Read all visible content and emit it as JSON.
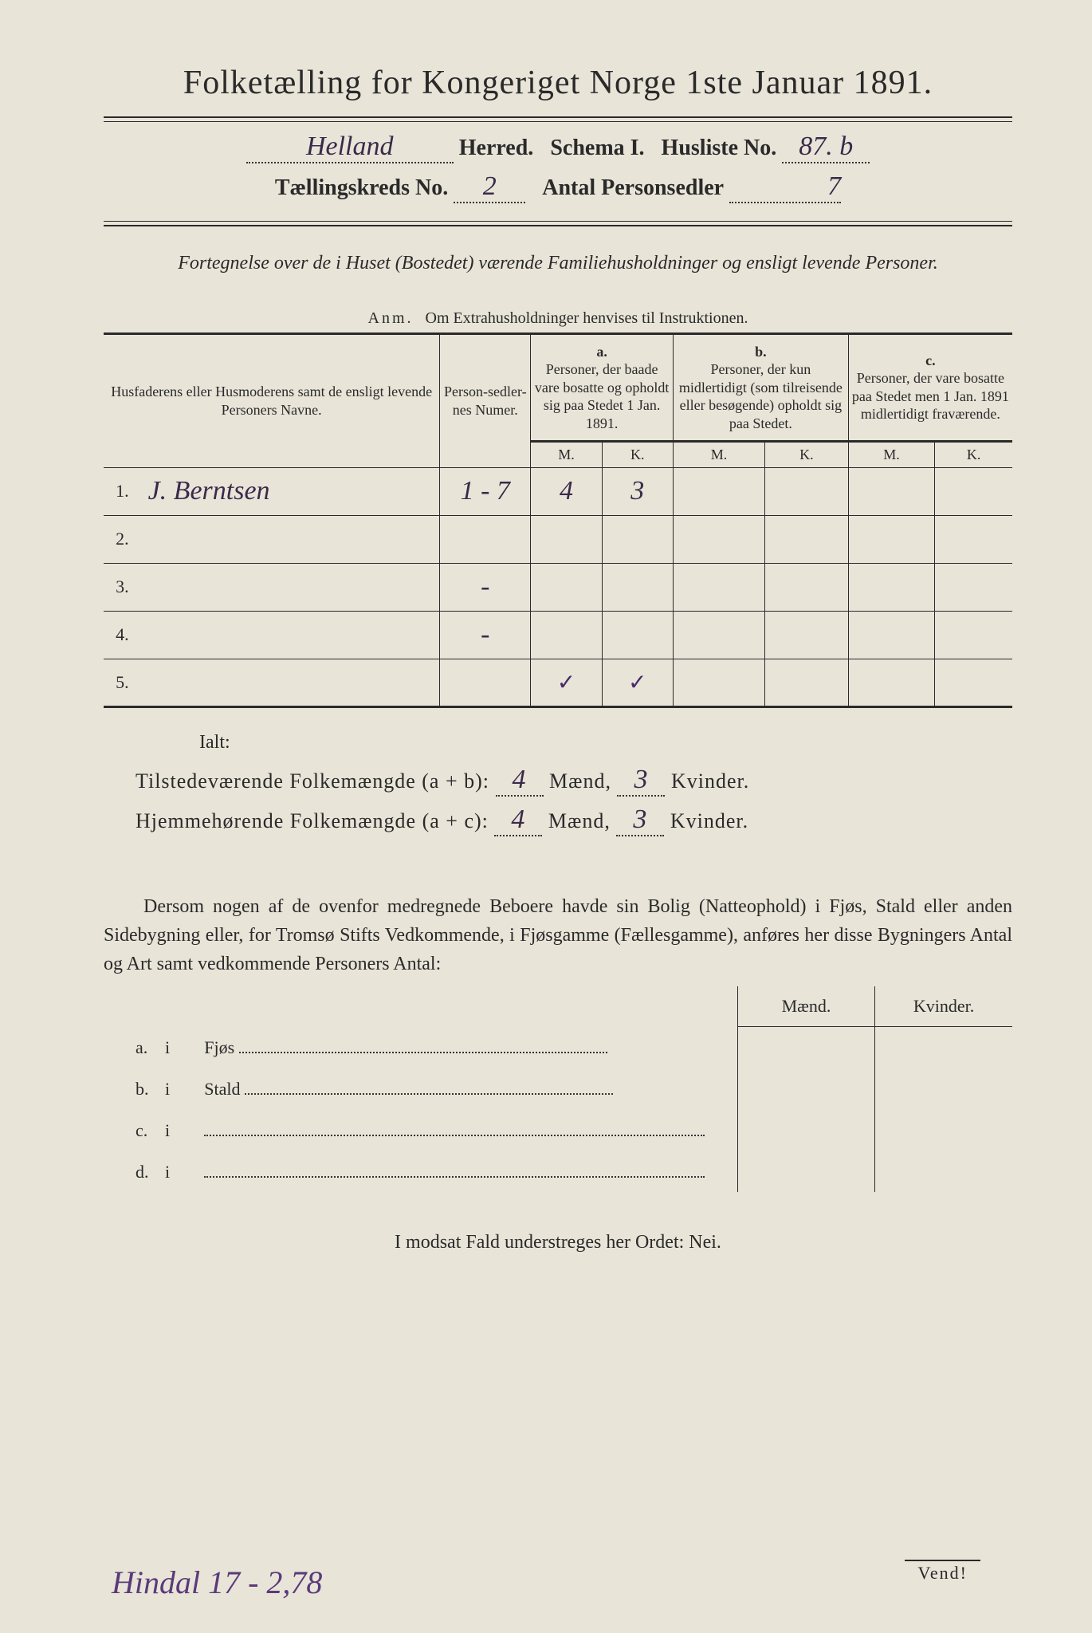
{
  "colors": {
    "paper": "#e8e4d8",
    "ink": "#2a2a2a",
    "handwriting": "#4a2a6a",
    "border": "#2a2a2a"
  },
  "title": "Folketælling for Kongeriget Norge 1ste Januar 1891.",
  "header": {
    "herred_value": "Helland",
    "herred_label": "Herred.",
    "schema_label": "Schema I.",
    "husliste_label": "Husliste No.",
    "husliste_value": "87. b",
    "kreds_label": "Tællingskreds No.",
    "kreds_value": "2",
    "antal_label": "Antal Personsedler",
    "antal_value": "7"
  },
  "subtitle": "Fortegnelse over de i Huset (Bostedet) værende Familiehusholdninger og ensligt levende Personer.",
  "anm_label": "Anm.",
  "anm_text": "Om Extrahusholdninger henvises til Instruktionen.",
  "columns": {
    "names": "Husfaderens eller Husmoderens samt de ensligt levende Personers Navne.",
    "numer": "Person-sedler-nes Numer.",
    "a_label": "a.",
    "a_text": "Personer, der baade vare bosatte og opholdt sig paa Stedet 1 Jan. 1891.",
    "b_label": "b.",
    "b_text": "Personer, der kun midlertidigt (som tilreisende eller besøgende) opholdt sig paa Stedet.",
    "c_label": "c.",
    "c_text": "Personer, der vare bosatte paa Stedet men 1 Jan. 1891 midlertidigt fraværende.",
    "m": "M.",
    "k": "K."
  },
  "rows": [
    {
      "n": "1.",
      "name": "J. Berntsen",
      "num": "1 - 7",
      "a_m": "4",
      "a_k": "3",
      "b_m": "",
      "b_k": "",
      "c_m": "",
      "c_k": ""
    },
    {
      "n": "2.",
      "name": "",
      "num": "",
      "a_m": "",
      "a_k": "",
      "b_m": "",
      "b_k": "",
      "c_m": "",
      "c_k": ""
    },
    {
      "n": "3.",
      "name": "",
      "num": "-",
      "a_m": "",
      "a_k": "",
      "b_m": "",
      "b_k": "",
      "c_m": "",
      "c_k": ""
    },
    {
      "n": "4.",
      "name": "",
      "num": "-",
      "a_m": "",
      "a_k": "",
      "b_m": "",
      "b_k": "",
      "c_m": "",
      "c_k": ""
    },
    {
      "n": "5.",
      "name": "",
      "num": "",
      "a_m": "✓",
      "a_k": "✓",
      "b_m": "",
      "b_k": "",
      "c_m": "",
      "c_k": ""
    }
  ],
  "ialt": "Ialt:",
  "totals": {
    "line1_label": "Tilstedeværende Folkemængde (a + b):",
    "line1_m": "4",
    "line1_k": "3",
    "line2_label": "Hjemmehørende Folkemængde (a + c):",
    "line2_m": "4",
    "line2_k": "3",
    "maend": "Mænd,",
    "kvinder": "Kvinder."
  },
  "body_text": "Dersom nogen af de ovenfor medregnede Beboere havde sin Bolig (Natteophold) i Fjøs, Stald eller anden Sidebygning eller, for Tromsø Stifts Vedkommende, i Fjøsgamme (Fællesgamme), anføres her disse Bygningers Antal og Art samt vedkommende Personers Antal:",
  "side_table": {
    "h_maend": "Mænd.",
    "h_kvinder": "Kvinder.",
    "rows": [
      {
        "l": "a.",
        "i": "i",
        "t": "Fjøs"
      },
      {
        "l": "b.",
        "i": "i",
        "t": "Stald"
      },
      {
        "l": "c.",
        "i": "i",
        "t": ""
      },
      {
        "l": "d.",
        "i": "i",
        "t": ""
      }
    ]
  },
  "footer": "I modsat Fald understreges her Ordet: Nei.",
  "vend": "Vend!",
  "scribble": "Hindal 17 - 2,78"
}
